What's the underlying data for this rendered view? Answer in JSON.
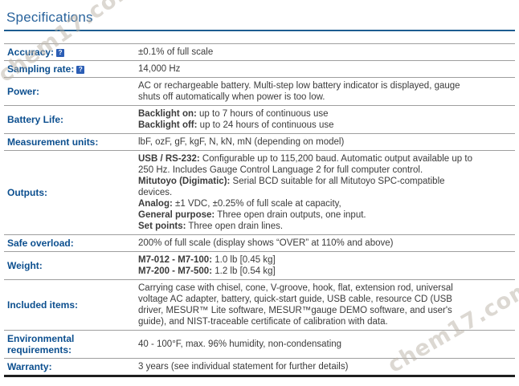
{
  "title": "Specifications",
  "watermark": {
    "text": "chem17.com"
  },
  "help_icon_glyph": "?",
  "colors": {
    "title": "#29639c",
    "title_rule": "#1d5d90",
    "label": "#0c4f8f",
    "value": "#3b3b3b",
    "row_separator": "#9e9e9e",
    "bottom_border": "#1f1f1f",
    "help_icon_bg": "#2c5eb5",
    "help_icon_fg": "#ffffff"
  },
  "table": {
    "rows": [
      {
        "label": "Accuracy:",
        "help": true,
        "lines": [
          [
            {
              "t": "±0.1% of full scale"
            }
          ]
        ]
      },
      {
        "label": "Sampling rate:",
        "help": true,
        "lines": [
          [
            {
              "t": "14,000 Hz"
            }
          ]
        ]
      },
      {
        "label": "Power:",
        "help": false,
        "lines": [
          [
            {
              "t": "AC or rechargeable battery. Multi-step low battery indicator is displayed, gauge"
            }
          ],
          [
            {
              "t": "shuts off automatically when power is too low."
            }
          ]
        ]
      },
      {
        "label": "Battery Life:",
        "help": false,
        "lines": [
          [
            {
              "b": "Backlight on:"
            },
            {
              "t": " up to 7 hours of continuous use"
            }
          ],
          [
            {
              "b": "Backlight off:"
            },
            {
              "t": " up to 24 hours of continuous use"
            }
          ]
        ]
      },
      {
        "label": "Measurement units:",
        "help": false,
        "lines": [
          [
            {
              "t": "lbF, ozF, gF, kgF, N, kN, mN (depending on model)"
            }
          ]
        ]
      },
      {
        "label": "Outputs:",
        "help": false,
        "lines": [
          [
            {
              "b": "USB / RS-232:"
            },
            {
              "t": " Configurable up to 115,200 baud. Automatic output available up to"
            }
          ],
          [
            {
              "t": "250 Hz. Includes Gauge Control Language 2 for full computer control."
            }
          ],
          [
            {
              "b": "Mitutoyo (Digimatic):"
            },
            {
              "t": " Serial BCD suitable for all Mitutoyo SPC-compatible"
            }
          ],
          [
            {
              "t": "devices."
            }
          ],
          [
            {
              "b": "Analog:"
            },
            {
              "t": " ±1 VDC, ±0.25% of full scale at capacity,"
            }
          ],
          [
            {
              "b": "General purpose:"
            },
            {
              "t": " Three open drain outputs, one input."
            }
          ],
          [
            {
              "b": "Set points:"
            },
            {
              "t": " Three open drain lines."
            }
          ]
        ]
      },
      {
        "label": "Safe overload:",
        "help": false,
        "lines": [
          [
            {
              "t": "200% of full scale (display shows “OVER” at 110% and above)"
            }
          ]
        ]
      },
      {
        "label": "Weight:",
        "help": false,
        "lines": [
          [
            {
              "b": "M7-012 - M7-100:"
            },
            {
              "t": " 1.0 lb [0.45 kg]"
            }
          ],
          [
            {
              "b": "M7-200 - M7-500:"
            },
            {
              "t": " 1.2 lb [0.54 kg]"
            }
          ]
        ]
      },
      {
        "label": "Included items:",
        "help": false,
        "lines": [
          [
            {
              "t": "Carrying case with chisel, cone, V-groove, hook, flat, extension rod, universal"
            }
          ],
          [
            {
              "t": "voltage AC adapter, battery, quick-start guide, USB cable, resource CD (USB"
            }
          ],
          [
            {
              "t": "driver, MESUR™ Lite software, MESUR™gauge DEMO software, and user's"
            }
          ],
          [
            {
              "t": "guide), and NIST-traceable certificate of calibration with data."
            }
          ]
        ]
      },
      {
        "label": "Environmental requirements:",
        "help": false,
        "lines": [
          [
            {
              "t": "40 - 100°F, max. 96% humidity, non-condensating"
            }
          ]
        ]
      },
      {
        "label": "Warranty:",
        "help": false,
        "lines": [
          [
            {
              "t": "3 years (see individual statement for further details)"
            }
          ]
        ]
      }
    ]
  }
}
